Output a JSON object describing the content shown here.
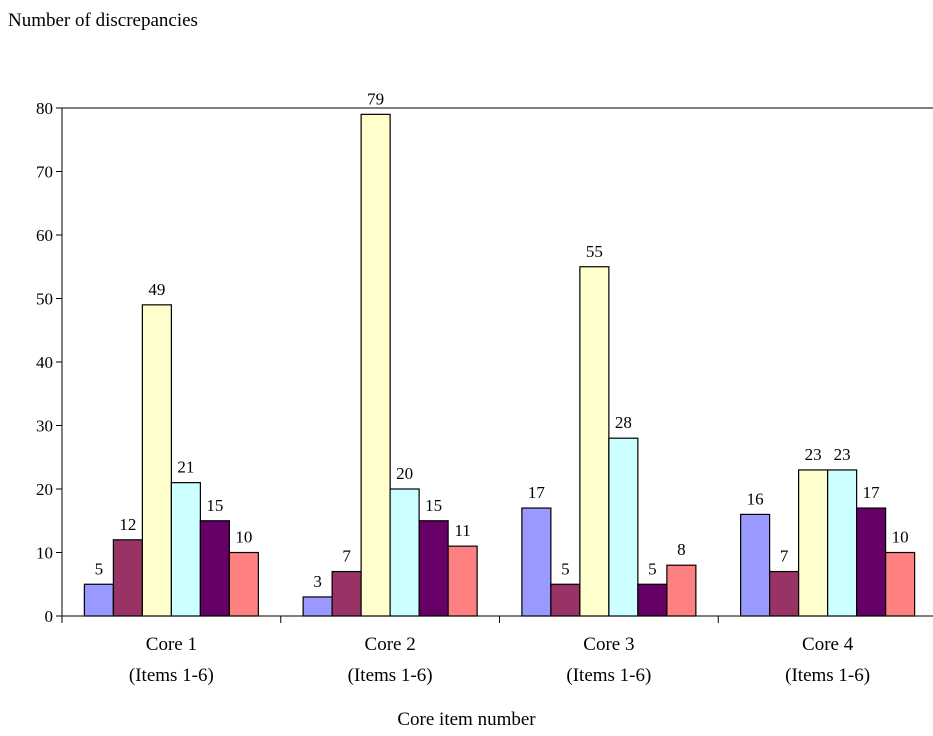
{
  "chart_data": {
    "type": "bar",
    "ylabel": "Number of discrepancies",
    "xlabel": "Core item number",
    "ylim": [
      0,
      80
    ],
    "yticks": [
      0,
      10,
      20,
      30,
      40,
      50,
      60,
      70,
      80
    ],
    "grid": false,
    "legend": "none",
    "categories": [
      {
        "line1": "Core 1",
        "line2": "(Items 1-6)"
      },
      {
        "line1": "Core 2",
        "line2": "(Items 1-6)"
      },
      {
        "line1": "Core 3",
        "line2": "(Items 1-6)"
      },
      {
        "line1": "Core 4",
        "line2": "(Items 1-6)"
      }
    ],
    "series": [
      {
        "color": "#9999ff",
        "values": [
          5,
          3,
          17,
          16
        ]
      },
      {
        "color": "#993366",
        "values": [
          12,
          7,
          5,
          7
        ]
      },
      {
        "color": "#ffffcc",
        "values": [
          49,
          79,
          55,
          23
        ]
      },
      {
        "color": "#ccffff",
        "values": [
          21,
          20,
          28,
          23
        ]
      },
      {
        "color": "#660066",
        "values": [
          15,
          15,
          5,
          17
        ]
      },
      {
        "color": "#ff8080",
        "values": [
          10,
          11,
          8,
          10
        ]
      }
    ]
  }
}
